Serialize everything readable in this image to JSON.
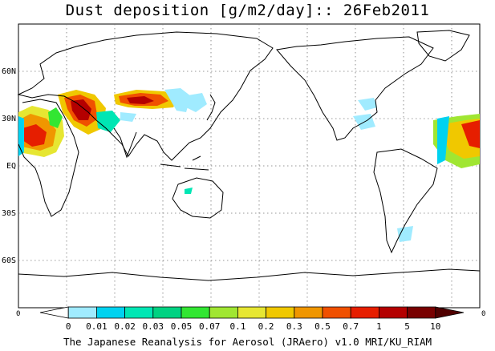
{
  "title": "Dust deposition [g/m2/day]:: 26Feb2011",
  "footer": "The Japanese Reanalysis for Aerosol (JRAero) v1.0 MRI/KU_RIAM",
  "axis": {
    "lat_labels": [
      "60N",
      "30N",
      "EQ",
      "30S",
      "60S"
    ],
    "lat_values": [
      60,
      30,
      0,
      -30,
      -60
    ],
    "corner_left": "0",
    "corner_right": "0"
  },
  "colorbar": {
    "labels": [
      "0",
      "0.01",
      "0.02",
      "0.03",
      "0.05",
      "0.07",
      "0.1",
      "0.2",
      "0.3",
      "0.5",
      "0.7",
      "1",
      "5",
      "10"
    ],
    "colors": [
      "#ffffff",
      "#a0ebff",
      "#00d2f0",
      "#00e6b4",
      "#00d282",
      "#32e632",
      "#a0e632",
      "#e6e632",
      "#f0c800",
      "#f09600",
      "#f05000",
      "#e61e00",
      "#b40000",
      "#780000",
      "#500000"
    ]
  },
  "map": {
    "projection": "equirectangular, 0E centered-left (Pacific view), lon 0..360",
    "lat_range": [
      -90,
      90
    ],
    "grid": "dotted"
  }
}
